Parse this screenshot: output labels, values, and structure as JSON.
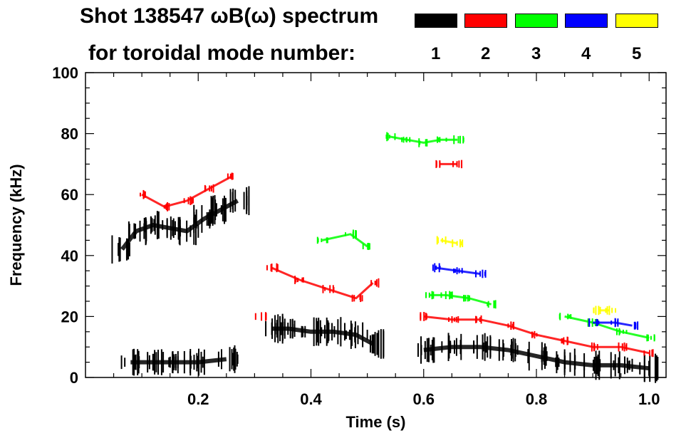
{
  "title": {
    "line1": "Shot 138547 ωB(ω) spectrum",
    "line2": "for toroidal mode number:"
  },
  "legend": [
    {
      "label": "1",
      "color": "#000000"
    },
    {
      "label": "2",
      "color": "#ff0000"
    },
    {
      "label": "3",
      "color": "#00ff00"
    },
    {
      "label": "4",
      "color": "#0000ff"
    },
    {
      "label": "5",
      "color": "#ffff00"
    }
  ],
  "chart_data": {
    "type": "scatter",
    "title": "Shot 138547 ωB(ω) spectrum",
    "xlabel": "Time (s)",
    "ylabel": "Frequency (kHz)",
    "xlim": [
      0.0,
      1.03
    ],
    "ylim": [
      0,
      100
    ],
    "xticks": [
      0.2,
      0.4,
      0.6,
      0.8,
      1.0
    ],
    "xtick_labels": [
      "0.2",
      "0.4",
      "0.6",
      "0.8",
      "1.0"
    ],
    "yticks": [
      0,
      20,
      40,
      60,
      80,
      100
    ],
    "ytick_labels": [
      "0",
      "20",
      "40",
      "60",
      "80",
      "100"
    ],
    "series": [
      {
        "name": "n=1",
        "color": "#000000",
        "segments": [
          {
            "x": [
              0.065,
              0.09,
              0.12,
              0.15,
              0.18,
              0.21,
              0.24,
              0.27
            ],
            "y": [
              42,
              48,
              50,
              49,
              48,
              52,
              55,
              58
            ]
          },
          {
            "x": [
              0.33,
              0.36,
              0.4,
              0.44,
              0.48,
              0.51
            ],
            "y": [
              16,
              16,
              15,
              15,
              14,
              11
            ]
          },
          {
            "x": [
              0.6,
              0.65,
              0.7,
              0.75,
              0.8,
              0.85,
              0.9,
              0.95,
              1.0
            ],
            "y": [
              9,
              10,
              10,
              9,
              7,
              5,
              4,
              4,
              3
            ]
          },
          {
            "x": [
              0.08,
              0.12,
              0.16,
              0.2,
              0.25
            ],
            "y": [
              5,
              5,
              5,
              5,
              6
            ]
          }
        ]
      },
      {
        "name": "n=2",
        "color": "#ff0000",
        "segments": [
          {
            "x": [
              0.1,
              0.14,
              0.18,
              0.22,
              0.26
            ],
            "y": [
              60,
              56,
              58,
              62,
              66
            ]
          },
          {
            "x": [
              0.33,
              0.38,
              0.43,
              0.48,
              0.51
            ],
            "y": [
              36,
              32,
              29,
              26,
              31
            ]
          },
          {
            "x": [
              0.6,
              0.65,
              0.7,
              0.75,
              0.8,
              0.85,
              0.9,
              0.95,
              1.0
            ],
            "y": [
              20,
              19,
              19,
              17,
              14,
              12,
              10,
              10,
              8
            ]
          },
          {
            "x": [
              0.31
            ],
            "y": [
              20
            ]
          },
          {
            "x": [
              0.63,
              0.66
            ],
            "y": [
              70,
              70
            ]
          }
        ]
      },
      {
        "name": "n=3",
        "color": "#00ff00",
        "segments": [
          {
            "x": [
              0.54,
              0.57,
              0.6,
              0.63,
              0.66
            ],
            "y": [
              79,
              78,
              77,
              78,
              78
            ]
          },
          {
            "x": [
              0.61,
              0.64,
              0.68,
              0.72
            ],
            "y": [
              27,
              27,
              26,
              24
            ]
          },
          {
            "x": [
              0.42,
              0.47,
              0.5
            ],
            "y": [
              45,
              47,
              43
            ]
          },
          {
            "x": [
              0.85,
              0.9,
              0.95,
              1.0
            ],
            "y": [
              20,
              18,
              15,
              13
            ]
          }
        ]
      },
      {
        "name": "n=4",
        "color": "#0000ff",
        "segments": [
          {
            "x": [
              0.62,
              0.66,
              0.7
            ],
            "y": [
              36,
              35,
              34
            ]
          },
          {
            "x": [
              0.9,
              0.94,
              0.97
            ],
            "y": [
              18,
              18,
              17
            ]
          }
        ]
      },
      {
        "name": "n=5",
        "color": "#ffff00",
        "segments": [
          {
            "x": [
              0.63,
              0.66
            ],
            "y": [
              45,
              44
            ]
          },
          {
            "x": [
              0.91,
              0.93
            ],
            "y": [
              22,
              22
            ]
          }
        ]
      }
    ]
  }
}
